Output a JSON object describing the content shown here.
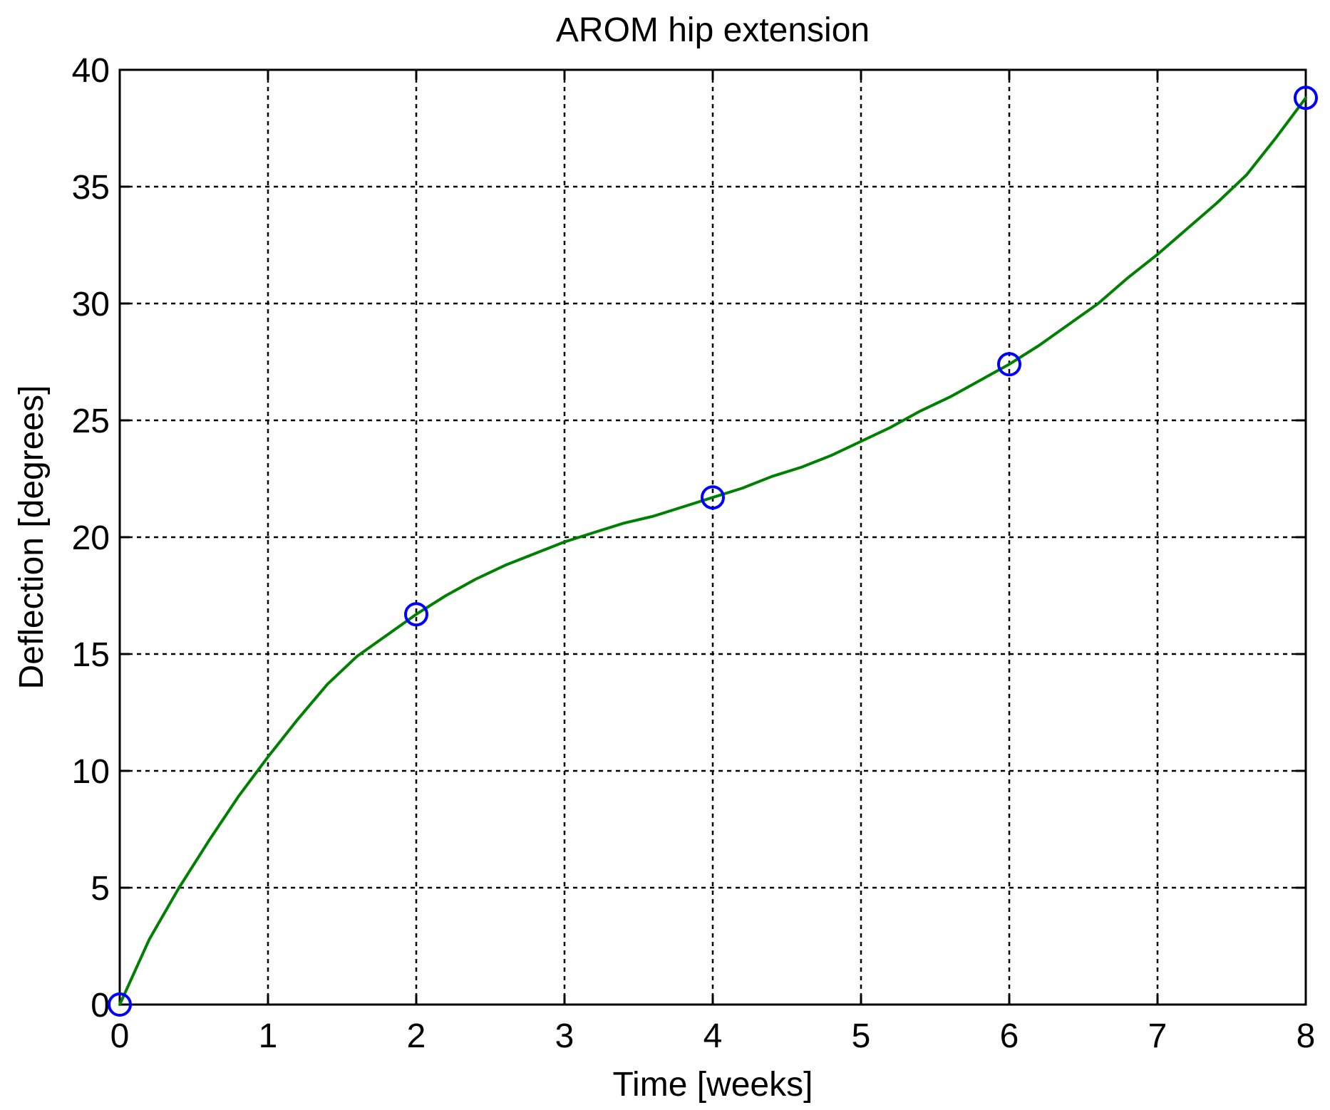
{
  "chart_data": {
    "type": "line",
    "title": "AROM hip extension",
    "xlabel": "Time [weeks]",
    "ylabel": "Deflection [degrees]",
    "xlim": [
      0,
      8
    ],
    "ylim": [
      0,
      40
    ],
    "xticks": [
      0,
      1,
      2,
      3,
      4,
      5,
      6,
      7,
      8
    ],
    "yticks": [
      0,
      5,
      10,
      15,
      20,
      25,
      30,
      35,
      40
    ],
    "xtick_labels": [
      "0",
      "1",
      "2",
      "3",
      "4",
      "5",
      "6",
      "7",
      "8"
    ],
    "ytick_labels": [
      "0",
      "5",
      "10",
      "15",
      "20",
      "25",
      "30",
      "35",
      "40"
    ],
    "grid": true,
    "grid_style": "dotted",
    "series": [
      {
        "style": "circle markers",
        "color": "#0000ff",
        "x": [
          0,
          2,
          4,
          6,
          8
        ],
        "y": [
          0,
          16.7,
          21.7,
          27.4,
          38.8
        ]
      },
      {
        "style": "smooth line",
        "color": "#008000",
        "x": [
          0,
          0.2,
          0.4,
          0.6,
          0.8,
          1.0,
          1.2,
          1.4,
          1.6,
          1.8,
          2.0,
          2.2,
          2.4,
          2.6,
          2.8,
          3.0,
          3.2,
          3.4,
          3.6,
          3.8,
          4.0,
          4.2,
          4.4,
          4.6,
          4.8,
          5.0,
          5.2,
          5.4,
          5.6,
          5.8,
          6.0,
          6.2,
          6.4,
          6.6,
          6.8,
          7.0,
          7.2,
          7.4,
          7.6,
          7.8,
          8.0
        ],
        "y": [
          0,
          2.8,
          5.0,
          7.0,
          8.9,
          10.6,
          12.2,
          13.7,
          14.9,
          15.8,
          16.7,
          17.5,
          18.2,
          18.8,
          19.3,
          19.8,
          20.2,
          20.6,
          20.9,
          21.3,
          21.7,
          22.1,
          22.6,
          23.0,
          23.5,
          24.1,
          24.7,
          25.4,
          26.0,
          26.7,
          27.4,
          28.2,
          29.1,
          30.0,
          31.1,
          32.1,
          33.2,
          34.3,
          35.5,
          37.1,
          38.8
        ]
      }
    ]
  }
}
